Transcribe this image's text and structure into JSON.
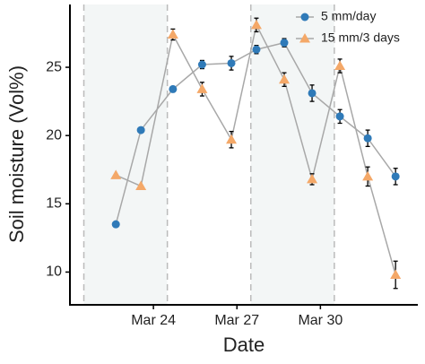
{
  "chart_data": {
    "type": "line",
    "x_label": "Date",
    "y_label": "Soil moisture (Vol%)",
    "x": [
      22.65,
      23.55,
      24.7,
      25.75,
      26.8,
      27.7,
      28.7,
      29.7,
      30.7,
      31.7,
      32.7
    ],
    "series": [
      {
        "name": "5 mm/day",
        "color": "#2f7ab8",
        "marker": "circle",
        "values": [
          13.5,
          20.4,
          23.4,
          25.2,
          25.3,
          26.3,
          26.8,
          23.1,
          21.4,
          19.8,
          17.0
        ],
        "errors": [
          null,
          null,
          null,
          0.3,
          0.5,
          0.3,
          0.3,
          0.6,
          0.5,
          0.6,
          0.6
        ]
      },
      {
        "name": "15 mm/3 days",
        "color": "#f4a868",
        "marker": "triangle",
        "values": [
          17.1,
          16.3,
          27.4,
          23.4,
          19.7,
          28.1,
          24.1,
          16.8,
          25.1,
          17.0,
          9.8
        ],
        "errors": [
          null,
          null,
          0.4,
          0.5,
          0.6,
          0.5,
          0.5,
          0.4,
          0.5,
          0.7,
          1.0
        ]
      }
    ],
    "line_color": "#a8a8a8",
    "shaded_regions": [
      [
        21.5,
        24.5
      ],
      [
        27.5,
        30.5
      ]
    ],
    "xlim": [
      21.0,
      33.5
    ],
    "xticks": [
      {
        "value": 24,
        "label": "Mar 24"
      },
      {
        "value": 27,
        "label": "Mar 27"
      },
      {
        "value": 30,
        "label": "Mar 30"
      }
    ],
    "ylim": [
      7.6,
      29.6
    ],
    "yticks": [
      10,
      15,
      20,
      25
    ],
    "legend": "top-right"
  }
}
